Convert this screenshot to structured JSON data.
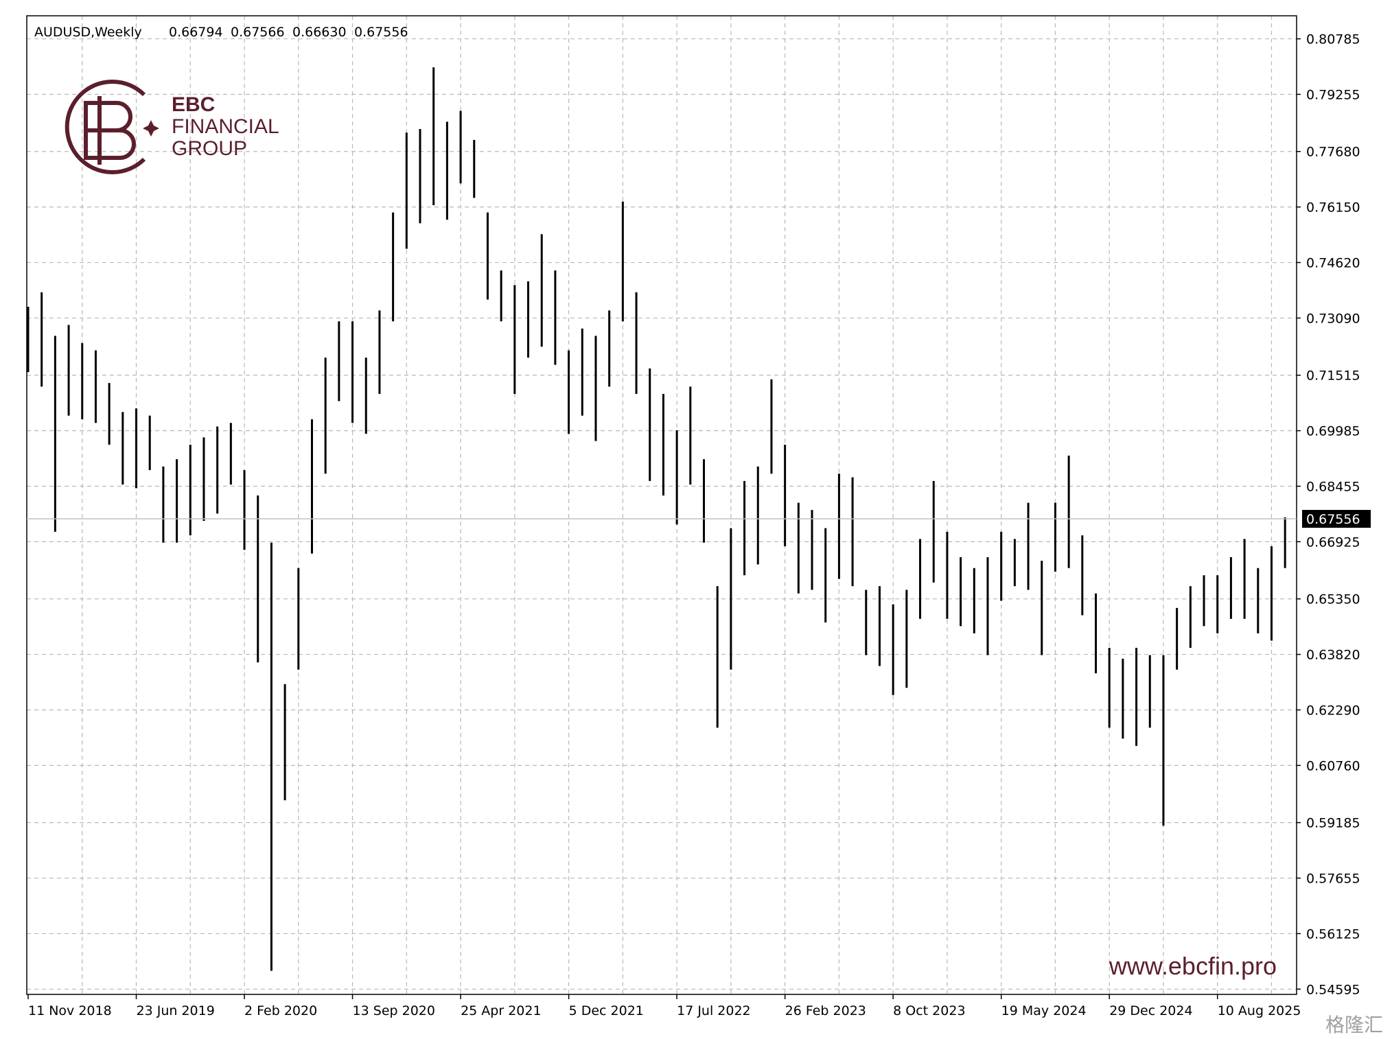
{
  "chart_data": {
    "type": "range-bar",
    "header": {
      "symbol": "AUDUSD,Weekly",
      "ohlc": [
        "0.66794",
        "0.67566",
        "0.66630",
        "0.67556"
      ]
    },
    "brand": {
      "lines": [
        "EBC",
        "FINANCIAL",
        "GROUP"
      ],
      "website": "www.ebcfin.pro",
      "watermark": "格隆汇"
    },
    "color": "#000000",
    "categories": [
      "11 Nov 2018",
      null,
      null,
      null,
      null,
      null,
      null,
      null,
      "23 Jun 2019",
      null,
      null,
      null,
      null,
      null,
      null,
      null,
      "2 Feb 2020",
      null,
      null,
      null,
      null,
      null,
      null,
      null,
      "13 Sep 2020",
      null,
      null,
      null,
      null,
      null,
      null,
      null,
      "25 Apr 2021",
      null,
      null,
      null,
      null,
      null,
      null,
      null,
      "5 Dec 2021",
      null,
      null,
      null,
      null,
      null,
      null,
      null,
      "17 Jul 2022",
      null,
      null,
      null,
      null,
      null,
      null,
      null,
      "26 Feb 2023",
      null,
      null,
      null,
      null,
      null,
      null,
      null,
      "8 Oct 2023",
      null,
      null,
      null,
      null,
      null,
      null,
      null,
      "19 May 2024",
      null,
      null,
      null,
      null,
      null,
      null,
      null,
      "29 Dec 2024",
      null,
      null,
      null,
      null,
      null,
      null,
      null,
      "10 Aug 2025",
      null,
      null,
      null,
      null,
      null
    ],
    "high": [
      0.734,
      0.738,
      0.726,
      0.729,
      0.724,
      0.722,
      0.713,
      0.705,
      0.706,
      0.704,
      0.69,
      0.692,
      0.696,
      0.698,
      0.701,
      0.702,
      0.689,
      0.682,
      0.669,
      0.63,
      0.662,
      0.703,
      0.72,
      0.73,
      0.73,
      0.72,
      0.733,
      0.76,
      0.782,
      0.783,
      0.8,
      0.785,
      0.788,
      0.78,
      0.76,
      0.744,
      0.74,
      0.741,
      0.754,
      0.744,
      0.722,
      0.728,
      0.726,
      0.733,
      0.763,
      0.738,
      0.717,
      0.71,
      0.7,
      0.712,
      0.692,
      0.657,
      0.673,
      0.686,
      0.69,
      0.714,
      0.696,
      0.68,
      0.678,
      0.673,
      0.688,
      0.687,
      0.656,
      0.657,
      0.652,
      0.656,
      0.67,
      0.686,
      0.672,
      0.665,
      0.662,
      0.665,
      0.672,
      0.67,
      0.68,
      0.664,
      0.68,
      0.693,
      0.671,
      0.655,
      0.64,
      0.637,
      0.64,
      0.638,
      0.638,
      0.651,
      0.657,
      0.66,
      0.66,
      0.665,
      0.67,
      0.662,
      0.668,
      0.676
    ],
    "low": [
      0.716,
      0.712,
      0.672,
      0.704,
      0.703,
      0.702,
      0.696,
      0.685,
      0.684,
      0.689,
      0.669,
      0.669,
      0.671,
      0.675,
      0.677,
      0.685,
      0.667,
      0.636,
      0.551,
      0.598,
      0.634,
      0.666,
      0.688,
      0.708,
      0.702,
      0.699,
      0.71,
      0.73,
      0.75,
      0.757,
      0.762,
      0.758,
      0.768,
      0.764,
      0.736,
      0.73,
      0.71,
      0.72,
      0.723,
      0.718,
      0.699,
      0.704,
      0.697,
      0.712,
      0.73,
      0.71,
      0.686,
      0.682,
      0.674,
      0.685,
      0.669,
      0.618,
      0.634,
      0.66,
      0.663,
      0.688,
      0.668,
      0.655,
      0.656,
      0.647,
      0.659,
      0.657,
      0.638,
      0.635,
      0.627,
      0.629,
      0.648,
      0.658,
      0.648,
      0.646,
      0.644,
      0.638,
      0.653,
      0.657,
      0.656,
      0.638,
      0.661,
      0.662,
      0.649,
      0.633,
      0.618,
      0.615,
      0.613,
      0.618,
      0.591,
      0.634,
      0.64,
      0.646,
      0.644,
      0.648,
      0.648,
      0.644,
      0.642,
      0.662
    ],
    "ylim": [
      0.5445,
      0.8142
    ],
    "yticks": [
      0.80785,
      0.79255,
      {
        "value": 0.7768,
        "label": "0.77680"
      },
      {
        "value": 0.7615,
        "label": "0.76150"
      },
      {
        "value": 0.7462,
        "label": "0.74620"
      },
      {
        "value": 0.7309,
        "label": "0.73090"
      },
      0.71515,
      0.69985,
      0.68455,
      0.66925,
      {
        "value": 0.6535,
        "label": "0.65350"
      },
      {
        "value": 0.6382,
        "label": "0.63820"
      },
      {
        "value": 0.6229,
        "label": "0.62290"
      },
      {
        "value": 0.6076,
        "label": "0.60760"
      },
      0.59185,
      0.57655,
      0.56125,
      0.54595
    ],
    "last_price": {
      "value": 0.67556,
      "label": "0.67556"
    },
    "grid": true
  }
}
